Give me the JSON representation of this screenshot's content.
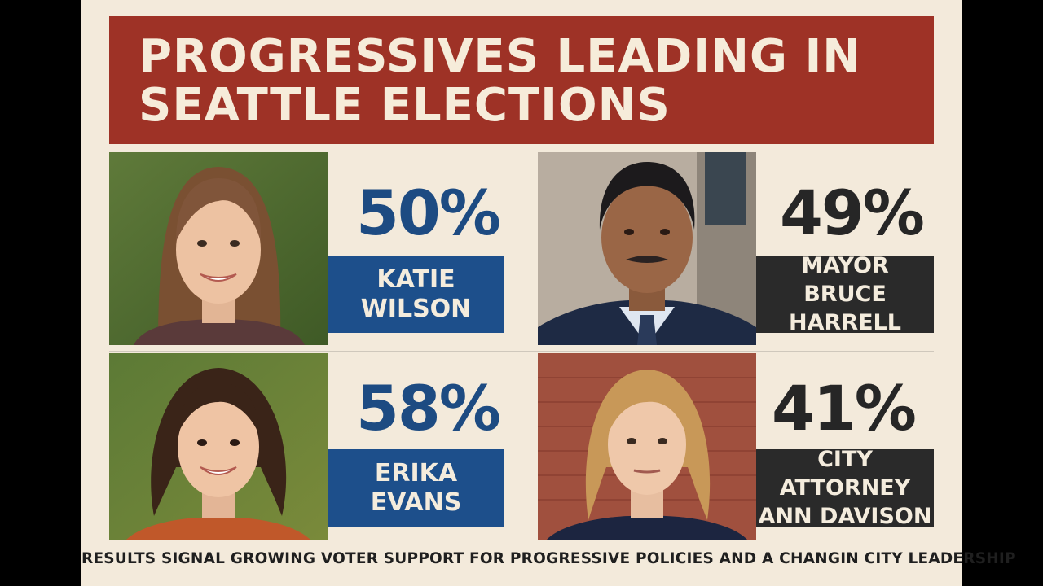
{
  "header": {
    "title": "PROGRESSIVES LEADING IN SEATTLE ELECTIONS"
  },
  "candidates": [
    {
      "percent": "50%",
      "name": "KATIE\nWILSON",
      "color": "#1d4f8b",
      "photo_icon": "woman-portrait"
    },
    {
      "percent": "49%",
      "name": "MAYOR\nBRUCE HARRELL",
      "color": "#2a2a2a",
      "photo_icon": "man-portrait"
    },
    {
      "percent": "58%",
      "name": "ERIKA\nEVANS",
      "color": "#1d4f8b",
      "photo_icon": "woman-portrait"
    },
    {
      "percent": "41%",
      "name": "CITY ATTORNEY\nANN DAVISON",
      "color": "#2a2a2a",
      "photo_icon": "woman-portrait"
    }
  ],
  "footer": {
    "text": "RESULTS SIGNAL GROWING VOTER SUPPORT FOR PROGRESSIVE POLICIES AND A CHANGIN CITY LEADERSHIP"
  },
  "colors": {
    "banner": "#9e3226",
    "background": "#f3eadb",
    "blue": "#1d4b82",
    "dark": "#262626"
  }
}
